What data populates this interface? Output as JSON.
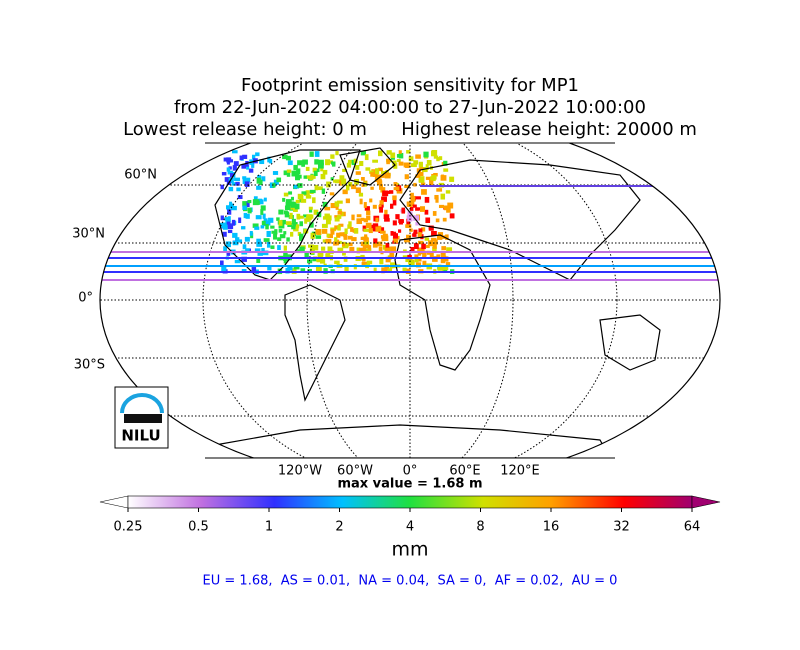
{
  "title": {
    "lines": [
      "Footprint emission sensitivity for MP1",
      "from 22-Jun-2022 04:00:00 to 27-Jun-2022 10:00:00",
      "Lowest release height: 0 m      Highest release height: 20000 m"
    ]
  },
  "map": {
    "lat_labels": [
      "60°N",
      "30°N",
      "0°",
      "30°S"
    ],
    "lon_labels": [
      "120°W",
      "60°W",
      "0°",
      "60°E",
      "120°E"
    ],
    "max_value": "max value = 1.68 m"
  },
  "logo": {
    "text": "NILU"
  },
  "colorbar": {
    "ticks": [
      "0.25",
      "0.5",
      "1",
      "2",
      "4",
      "8",
      "16",
      "32",
      "64"
    ],
    "unit": "mm"
  },
  "stats": "EU = 1.68,  AS = 0.01,  NA = 0.04,  SA = 0,  AF = 0.02,  AU = 0"
}
